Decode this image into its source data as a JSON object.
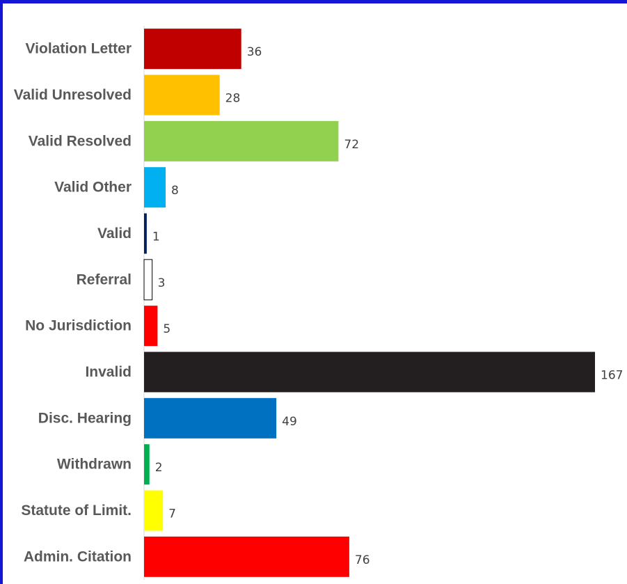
{
  "chart_data": {
    "type": "bar",
    "orientation": "horizontal",
    "categories": [
      "Violation Letter",
      "Valid Unresolved",
      "Valid Resolved",
      "Valid Other",
      "Valid",
      "Referral",
      "No Jurisdiction",
      "Invalid",
      "Disc. Hearing",
      "Withdrawn",
      "Statute of Limit.",
      "Admin. Citation"
    ],
    "values": [
      36,
      28,
      72,
      8,
      1,
      3,
      5,
      167,
      49,
      2,
      7,
      76
    ],
    "colors": [
      "#c00000",
      "#ffc000",
      "#92d050",
      "#00b0f0",
      "#002060",
      "#ffffff",
      "#ff0000",
      "#231f20",
      "#0070c0",
      "#00b050",
      "#ffff00",
      "#ff0000"
    ],
    "title": "",
    "xlabel": "",
    "ylabel": "",
    "xlim": [
      0,
      167
    ],
    "grid": false,
    "legend": "none",
    "data_labels": true
  },
  "frame": {
    "border_color": "#1515d4"
  }
}
